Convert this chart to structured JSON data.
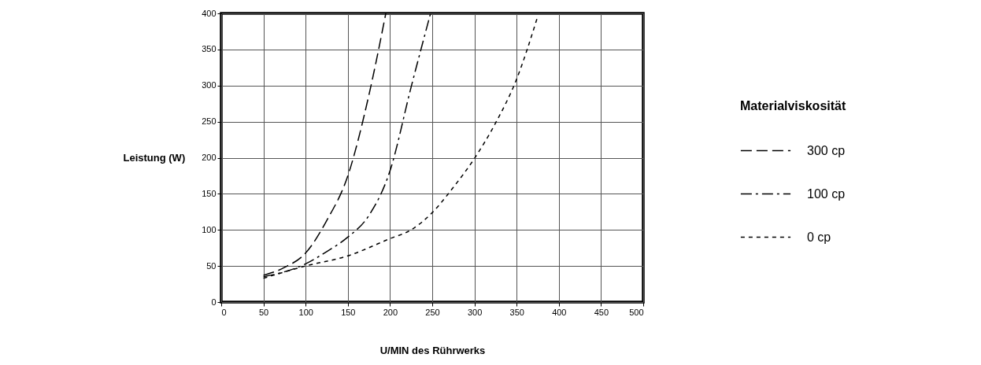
{
  "chart_data": {
    "type": "line",
    "xlabel": "U/MIN des Rührwerks",
    "ylabel": "Leistung (W)",
    "legend_title": "Materialviskosität",
    "legend": "right",
    "grid": true,
    "xlim": [
      0,
      500
    ],
    "xticks": [
      0,
      50,
      100,
      150,
      200,
      250,
      300,
      350,
      400,
      450,
      500
    ],
    "ylim": [
      0,
      400
    ],
    "yticks": [
      0,
      50,
      100,
      150,
      200,
      250,
      300,
      350,
      400
    ],
    "series": [
      {
        "name": "300 cp",
        "color": "#000000",
        "line_style": "dashed",
        "x": [
          50,
          75,
          100,
          125,
          150,
          175,
          195
        ],
        "values": [
          37,
          48,
          68,
          113,
          175,
          287,
          400
        ]
      },
      {
        "name": "100 cp",
        "color": "#000000",
        "line_style": "dashdot",
        "x": [
          50,
          100,
          125,
          150,
          175,
          200,
          225,
          248
        ],
        "values": [
          35,
          53,
          70,
          90,
          120,
          182,
          298,
          400
        ]
      },
      {
        "name": "0 cp",
        "color": "#000000",
        "line_style": "dotted",
        "x": [
          50,
          100,
          150,
          200,
          225,
          250,
          275,
          300,
          325,
          350,
          375
        ],
        "values": [
          33,
          50,
          64,
          88,
          100,
          124,
          159,
          199,
          248,
          309,
          396
        ]
      }
    ]
  }
}
